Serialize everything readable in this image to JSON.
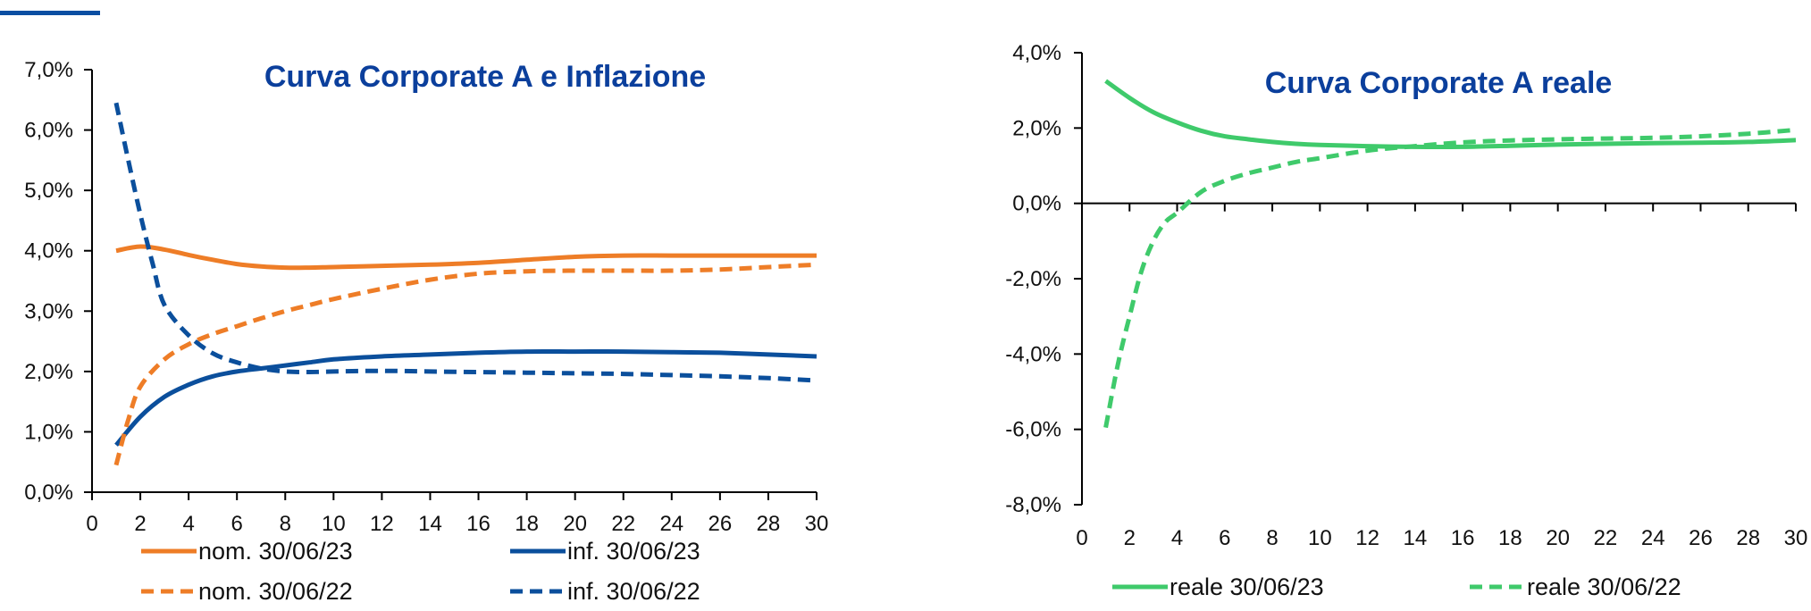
{
  "colors": {
    "orange": "#ee7d27",
    "blue": "#0b4f9c",
    "green": "#3fca6b",
    "title": "#0b3f9c",
    "accent": "#0b4ea2"
  },
  "chart_data": [
    {
      "type": "line",
      "title": "Curva Corporate A e Inflazione",
      "xlabel": "",
      "ylabel": "",
      "xlim": [
        0,
        30
      ],
      "ylim": [
        0,
        7
      ],
      "x_ticks": [
        0,
        2,
        4,
        6,
        8,
        10,
        12,
        14,
        16,
        18,
        20,
        22,
        24,
        26,
        28,
        30
      ],
      "y_tick_values": [
        0,
        1,
        2,
        3,
        4,
        5,
        6,
        7
      ],
      "y_tick_labels": [
        "0,0%",
        "1,0%",
        "2,0%",
        "3,0%",
        "4,0%",
        "5,0%",
        "6,0%",
        "7,0%"
      ],
      "legend_position": "bottom",
      "series": [
        {
          "name": "nom. 30/06/23",
          "color": "orange",
          "dash": "solid",
          "x": [
            1,
            2,
            3,
            4,
            5,
            6,
            7,
            8,
            9,
            10,
            12,
            14,
            16,
            18,
            20,
            22,
            24,
            26,
            28,
            30
          ],
          "values": [
            4.0,
            4.07,
            4.02,
            3.93,
            3.85,
            3.78,
            3.74,
            3.72,
            3.72,
            3.73,
            3.75,
            3.77,
            3.8,
            3.85,
            3.9,
            3.92,
            3.92,
            3.92,
            3.92,
            3.92
          ]
        },
        {
          "name": "inf. 30/06/23",
          "color": "blue",
          "dash": "solid",
          "x": [
            1,
            2,
            3,
            4,
            5,
            6,
            7,
            8,
            9,
            10,
            12,
            14,
            16,
            18,
            20,
            22,
            24,
            26,
            28,
            30
          ],
          "values": [
            0.78,
            1.25,
            1.58,
            1.78,
            1.92,
            2.0,
            2.05,
            2.1,
            2.15,
            2.2,
            2.25,
            2.28,
            2.31,
            2.33,
            2.33,
            2.33,
            2.32,
            2.31,
            2.28,
            2.25
          ]
        },
        {
          "name": "nom. 30/06/22",
          "color": "orange",
          "dash": "dashed",
          "x": [
            1,
            1.5,
            2,
            3,
            4,
            5,
            6,
            7,
            8,
            9,
            10,
            12,
            14,
            16,
            18,
            20,
            22,
            24,
            26,
            28,
            30
          ],
          "values": [
            0.45,
            1.2,
            1.75,
            2.2,
            2.45,
            2.62,
            2.75,
            2.88,
            3.0,
            3.1,
            3.2,
            3.37,
            3.52,
            3.62,
            3.66,
            3.67,
            3.67,
            3.67,
            3.69,
            3.73,
            3.77
          ]
        },
        {
          "name": "inf. 30/06/22",
          "color": "blue",
          "dash": "dashed",
          "x": [
            1,
            1.5,
            2,
            2.5,
            3,
            4,
            5,
            6,
            7,
            8,
            9,
            10,
            12,
            14,
            16,
            18,
            20,
            22,
            24,
            26,
            28,
            30
          ],
          "values": [
            6.45,
            5.5,
            4.6,
            3.8,
            3.1,
            2.6,
            2.3,
            2.15,
            2.05,
            2.0,
            1.99,
            2.0,
            2.01,
            2.0,
            1.99,
            1.98,
            1.97,
            1.96,
            1.94,
            1.92,
            1.89,
            1.85
          ]
        }
      ]
    },
    {
      "type": "line",
      "title": "Curva Corporate A reale",
      "xlabel": "",
      "ylabel": "",
      "xlim": [
        0,
        30
      ],
      "ylim": [
        -8,
        4
      ],
      "x_ticks": [
        0,
        2,
        4,
        6,
        8,
        10,
        12,
        14,
        16,
        18,
        20,
        22,
        24,
        26,
        28,
        30
      ],
      "y_tick_values": [
        -8,
        -6,
        -4,
        -2,
        0,
        2,
        4
      ],
      "y_tick_labels": [
        "-8,0%",
        "-6,0%",
        "-4,0%",
        "-2,0%",
        "0,0%",
        "2,0%",
        "4,0%"
      ],
      "legend_position": "bottom",
      "series": [
        {
          "name": "reale 30/06/23",
          "color": "green",
          "dash": "solid",
          "x": [
            1,
            2,
            3,
            4,
            5,
            6,
            7,
            8,
            9,
            10,
            12,
            14,
            16,
            18,
            20,
            22,
            24,
            26,
            28,
            30
          ],
          "values": [
            3.25,
            2.8,
            2.42,
            2.15,
            1.93,
            1.78,
            1.7,
            1.63,
            1.58,
            1.55,
            1.52,
            1.5,
            1.5,
            1.53,
            1.56,
            1.58,
            1.6,
            1.61,
            1.63,
            1.68
          ]
        },
        {
          "name": "reale 30/06/22",
          "color": "green",
          "dash": "dashed",
          "x": [
            1,
            1.5,
            2,
            2.5,
            3,
            3.5,
            4,
            5,
            6,
            7,
            8,
            9,
            10,
            12,
            14,
            16,
            18,
            20,
            22,
            24,
            26,
            28,
            30
          ],
          "values": [
            -5.95,
            -4.3,
            -3.0,
            -1.8,
            -1.0,
            -0.5,
            -0.25,
            0.3,
            0.6,
            0.8,
            0.95,
            1.1,
            1.2,
            1.4,
            1.52,
            1.62,
            1.67,
            1.7,
            1.72,
            1.74,
            1.78,
            1.85,
            1.95
          ]
        }
      ]
    }
  ]
}
